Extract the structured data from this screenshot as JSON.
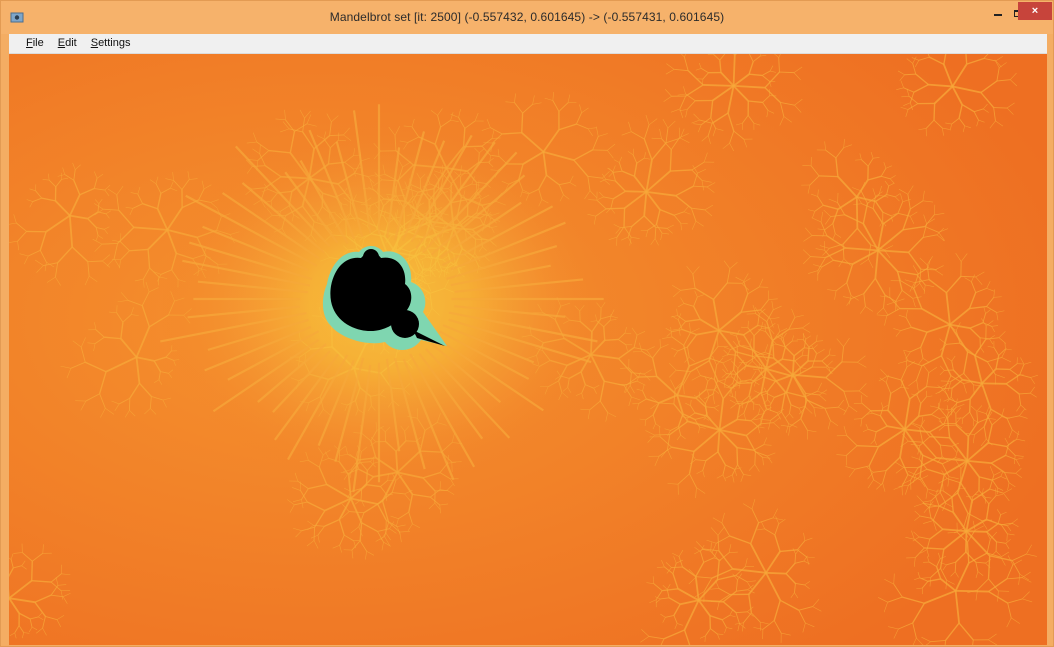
{
  "window": {
    "title": "Mandelbrot set [it: 2500] (-0.557432, 0.601645) -> (-0.557431, 0.601645)",
    "icon": "app-icon",
    "controls": {
      "minimize": "–",
      "close": "×"
    }
  },
  "menu": {
    "items": [
      {
        "label": "File",
        "accel": "F",
        "rest": "ile"
      },
      {
        "label": "Edit",
        "accel": "E",
        "rest": "dit"
      },
      {
        "label": "Settings",
        "accel": "S",
        "rest": "ettings"
      }
    ]
  },
  "render": {
    "colors": {
      "background": "#f07a24",
      "filament": "#f7a83a",
      "halo": "#f9e24a",
      "edge": "#7fd6b0",
      "set": "#000000"
    }
  }
}
